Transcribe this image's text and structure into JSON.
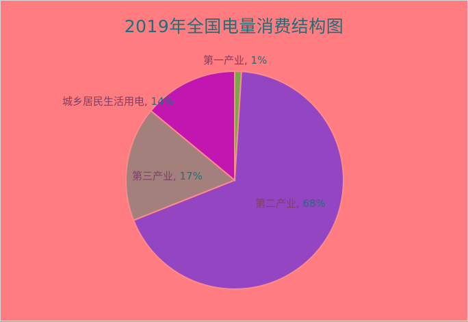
{
  "chart_data": {
    "type": "pie",
    "title": "2019年全国电量消费结构图",
    "slices": [
      {
        "label": "第一产业",
        "value": 1,
        "display": "第一产业, 1%",
        "color": "#78a84a"
      },
      {
        "label": "第二产业",
        "value": 68,
        "display": "第二产业, 68%",
        "color": "#9445c2"
      },
      {
        "label": "第三产业",
        "value": 17,
        "display": "第三产业, 17%",
        "color": "#a4807d"
      },
      {
        "label": "城乡居民生活用电",
        "value": 14,
        "display": "城乡居民生活用电, 14%",
        "color": "#c216b1"
      }
    ],
    "legend": false,
    "colors": {
      "background": "#ff7c80",
      "slice_border": "#ff8a8c",
      "title": "#1f6f7a",
      "label_text": "#7b3f68",
      "label_value": "#1f6f7a"
    }
  }
}
